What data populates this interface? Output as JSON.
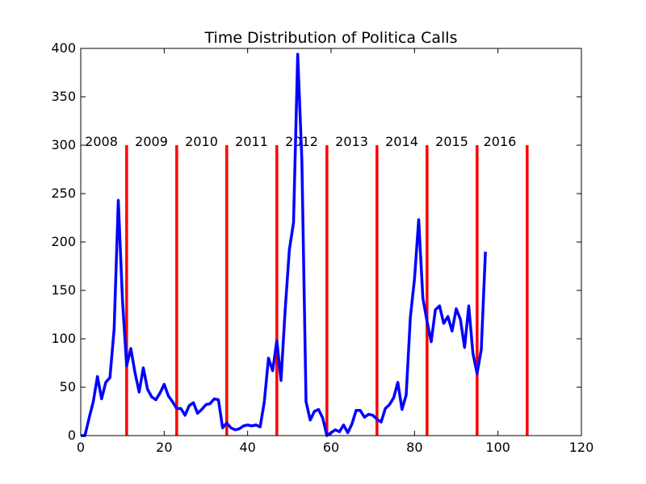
{
  "chart_data": {
    "type": "line",
    "title": "Time Distribution of Politica Calls",
    "xlabel": "",
    "ylabel": "",
    "xlim": [
      0,
      120
    ],
    "ylim": [
      0,
      400
    ],
    "xticks": [
      0,
      20,
      40,
      60,
      80,
      100,
      120
    ],
    "yticks": [
      0,
      50,
      100,
      150,
      200,
      250,
      300,
      350,
      400
    ],
    "grid": false,
    "series": [
      {
        "color": "#0000ff",
        "x": [
          0,
          1,
          2,
          3,
          4,
          5,
          6,
          7,
          8,
          9,
          10,
          11,
          12,
          13,
          14,
          15,
          16,
          17,
          18,
          19,
          20,
          21,
          22,
          23,
          24,
          25,
          26,
          27,
          28,
          29,
          30,
          31,
          32,
          33,
          34,
          35,
          36,
          37,
          38,
          39,
          40,
          41,
          42,
          43,
          44,
          45,
          46,
          47,
          48,
          49,
          50,
          51,
          52,
          53,
          54,
          55,
          56,
          57,
          58,
          59,
          60,
          61,
          62,
          63,
          64,
          65,
          66,
          67,
          68,
          69,
          70,
          71,
          72,
          73,
          74,
          75,
          76,
          77,
          78,
          79,
          80,
          81,
          82,
          83,
          84,
          85,
          86,
          87,
          88,
          89,
          90,
          91,
          92,
          93,
          94,
          95,
          96,
          97
        ],
        "y": [
          0,
          0,
          18,
          35,
          61,
          38,
          55,
          60,
          110,
          243,
          140,
          72,
          90,
          65,
          45,
          70,
          48,
          40,
          37,
          44,
          53,
          41,
          35,
          28,
          28,
          21,
          31,
          34,
          23,
          27,
          32,
          33,
          38,
          37,
          8,
          13,
          8,
          6,
          7,
          10,
          11,
          10,
          11,
          9,
          35,
          80,
          67,
          98,
          57,
          130,
          192,
          220,
          394,
          285,
          35,
          16,
          25,
          27,
          18,
          0,
          3,
          6,
          4,
          11,
          3,
          12,
          26,
          26,
          19,
          22,
          21,
          17,
          14,
          28,
          32,
          39,
          55,
          27,
          42,
          122,
          162,
          223,
          142,
          118,
          97,
          130,
          134,
          116,
          123,
          108,
          131,
          120,
          91,
          134,
          85,
          64,
          89,
          190
        ]
      }
    ],
    "year_markers": {
      "color": "#ff0000",
      "top": 300,
      "x": [
        11,
        23,
        35,
        47,
        59,
        71,
        83,
        95,
        107
      ],
      "labels": [
        {
          "text": "2008",
          "x": 1
        },
        {
          "text": "2009",
          "x": 13
        },
        {
          "text": "2010",
          "x": 25
        },
        {
          "text": "2011",
          "x": 37
        },
        {
          "text": "2012",
          "x": 49
        },
        {
          "text": "2013",
          "x": 61
        },
        {
          "text": "2014",
          "x": 73
        },
        {
          "text": "2015",
          "x": 85
        },
        {
          "text": "2016",
          "x": 96.5
        }
      ]
    }
  }
}
